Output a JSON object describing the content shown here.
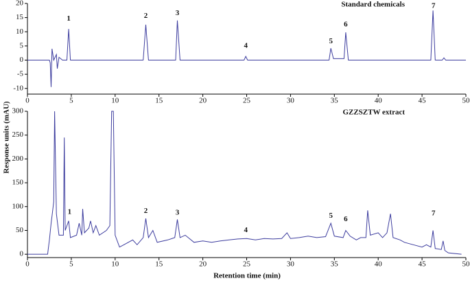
{
  "chart_data": [
    {
      "type": "line",
      "title": "Standard chemicals",
      "color": "#3c3c9e",
      "x": [
        0,
        2.5,
        2.6,
        2.7,
        2.8,
        3.0,
        3.3,
        3.4,
        3.6,
        4.0,
        4.5,
        4.7,
        4.9,
        13.2,
        13.5,
        13.8,
        16.9,
        17.1,
        17.4,
        24.7,
        24.9,
        25.1,
        34.4,
        34.6,
        34.9,
        36.1,
        36.3,
        36.6,
        46.0,
        46.25,
        46.5,
        47.3,
        47.5,
        47.7,
        50
      ],
      "values": [
        0,
        0,
        -1,
        -9.5,
        4,
        0,
        2,
        -3,
        1,
        0,
        0,
        11,
        0,
        0,
        12.5,
        0,
        0,
        14,
        0,
        0,
        1.3,
        0,
        0,
        4.2,
        0.5,
        0.5,
        9.8,
        0,
        0,
        17.5,
        0,
        0,
        0.8,
        0,
        0
      ],
      "xlim": [
        0,
        50
      ],
      "ylim": [
        -12,
        20
      ],
      "xticks": [
        0,
        5,
        10,
        15,
        20,
        25,
        30,
        35,
        40,
        45,
        50
      ],
      "yticks": [
        -10,
        -5,
        0,
        5,
        10,
        15,
        20
      ],
      "annotations": [
        {
          "text": "1",
          "x": 4.7,
          "y": 14.5
        },
        {
          "text": "2",
          "x": 13.5,
          "y": 15.5
        },
        {
          "text": "3",
          "x": 17.1,
          "y": 16.5
        },
        {
          "text": "4",
          "x": 24.9,
          "y": 5
        },
        {
          "text": "5",
          "x": 34.6,
          "y": 6.5
        },
        {
          "text": "6",
          "x": 36.3,
          "y": 12.5
        },
        {
          "text": "7",
          "x": 46.3,
          "y": 19
        }
      ]
    },
    {
      "type": "line",
      "title": "GZZSZTW extract",
      "color": "#3c3c9e",
      "xlabel": "Retention time (min)",
      "ylabel": "Response units (mAU)",
      "x": [
        0,
        2.3,
        2.5,
        2.7,
        2.8,
        3.0,
        3.1,
        3.3,
        3.6,
        4.1,
        4.2,
        4.3,
        4.7,
        4.9,
        5.6,
        5.9,
        6.2,
        6.3,
        6.5,
        7.0,
        7.2,
        7.5,
        7.8,
        8.2,
        9.0,
        9.4,
        9.6,
        9.8,
        10.0,
        10.5,
        11,
        12,
        12.5,
        13.2,
        13.5,
        13.8,
        14.3,
        14.8,
        16,
        16.8,
        17.1,
        17.4,
        18,
        19,
        20,
        21,
        22,
        23,
        24,
        25,
        26,
        27,
        28,
        29,
        29.6,
        30,
        31,
        32,
        33,
        34,
        34.6,
        35,
        36,
        36.3,
        36.8,
        37.5,
        38,
        38.6,
        38.8,
        39.1,
        40,
        40.5,
        41,
        41.4,
        41.7,
        42.5,
        43,
        44,
        45,
        45.5,
        46,
        46.25,
        46.5,
        47.2,
        47.4,
        47.6,
        48,
        49.5
      ],
      "values": [
        0,
        0,
        30,
        65,
        80,
        110,
        300,
        85,
        40,
        40,
        245,
        50,
        70,
        35,
        40,
        65,
        40,
        95,
        45,
        55,
        70,
        45,
        60,
        40,
        50,
        60,
        300,
        300,
        40,
        15,
        20,
        30,
        20,
        35,
        75,
        35,
        50,
        25,
        30,
        35,
        73,
        35,
        40,
        25,
        28,
        25,
        28,
        30,
        32,
        33,
        30,
        33,
        32,
        33,
        45,
        33,
        35,
        38,
        35,
        37,
        65,
        38,
        35,
        50,
        38,
        30,
        35,
        35,
        92,
        40,
        45,
        35,
        45,
        85,
        35,
        30,
        25,
        20,
        15,
        20,
        15,
        50,
        12,
        10,
        28,
        8,
        3,
        0
      ],
      "xlim": [
        0,
        50
      ],
      "ylim": [
        -7,
        300
      ],
      "xticks": [
        0,
        5,
        10,
        15,
        20,
        25,
        30,
        35,
        40,
        45,
        50
      ],
      "yticks": [
        0,
        50,
        100,
        150,
        200,
        250,
        300
      ],
      "annotations": [
        {
          "text": "1",
          "x": 4.8,
          "y": 88
        },
        {
          "text": "2",
          "x": 13.5,
          "y": 90
        },
        {
          "text": "3",
          "x": 17.1,
          "y": 87
        },
        {
          "text": "4",
          "x": 24.9,
          "y": 50
        },
        {
          "text": "5",
          "x": 34.6,
          "y": 80
        },
        {
          "text": "6",
          "x": 36.3,
          "y": 73
        },
        {
          "text": "7",
          "x": 46.3,
          "y": 85
        }
      ]
    }
  ]
}
